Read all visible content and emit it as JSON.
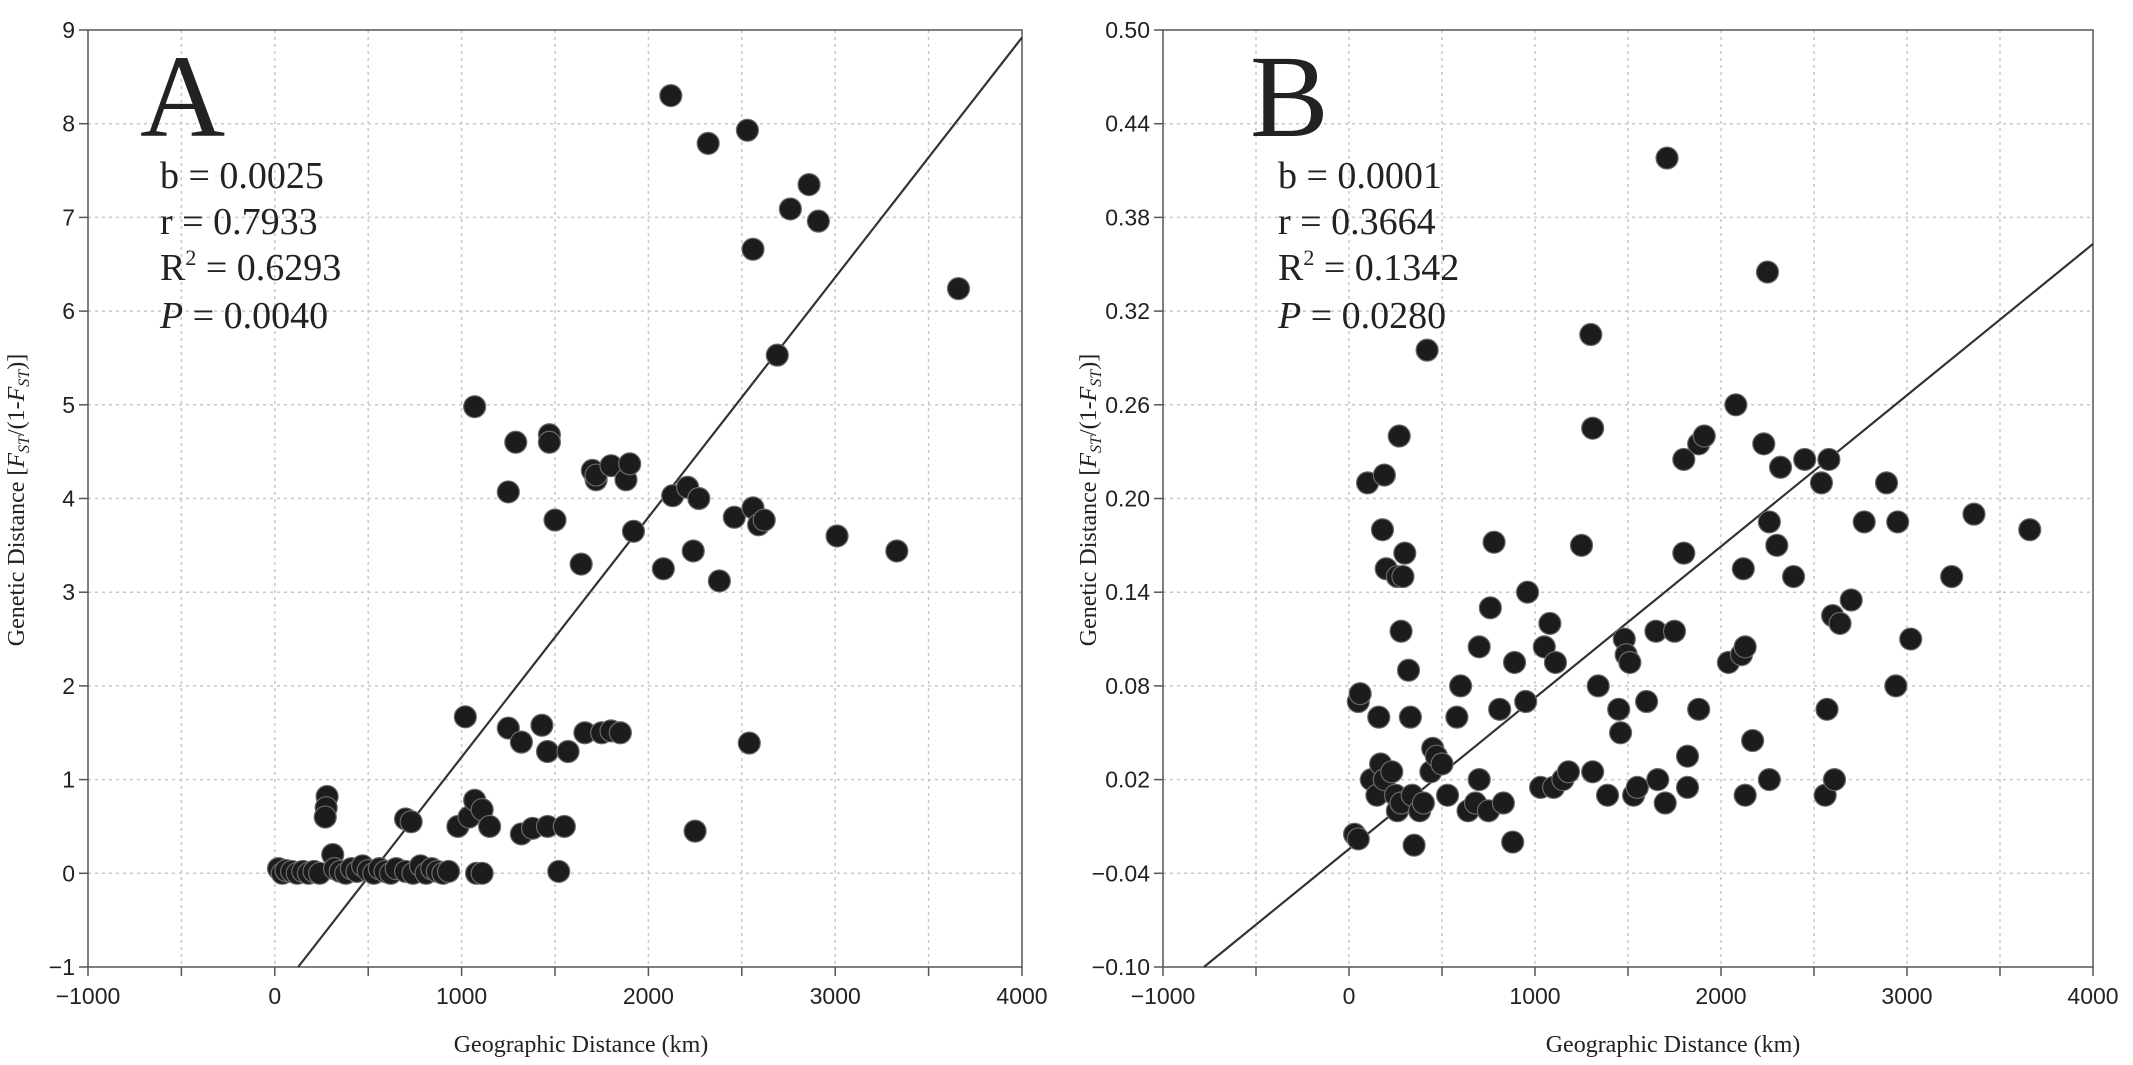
{
  "chart_data": [
    {
      "type": "scatter",
      "panel_label": "A",
      "xlabel": "Geographic Distance (km)",
      "ylabel_prefix": "Genetic Distance [",
      "ylabel_f1": "F",
      "ylabel_sub1": "ST",
      "ylabel_mid": "/(1-",
      "ylabel_f2": "F",
      "ylabel_sub2": "ST",
      "ylabel_suffix": ")]",
      "xlim": [
        -1000,
        4000
      ],
      "ylim": [
        -1,
        9
      ],
      "xticks": [
        -1000,
        0,
        1000,
        2000,
        3000,
        4000
      ],
      "xtick_labels": [
        "−1000",
        "0",
        "1000",
        "2000",
        "3000",
        "4000"
      ],
      "yticks": [
        -1,
        0,
        1,
        2,
        3,
        4,
        5,
        6,
        7,
        8,
        9
      ],
      "ytick_labels": [
        "−1",
        "0",
        "1",
        "2",
        "3",
        "4",
        "5",
        "6",
        "7",
        "8",
        "9"
      ],
      "grid": true,
      "stats": [
        {
          "label": "b",
          "value": " = 0.0025",
          "italic": false
        },
        {
          "label": "r",
          "value": " = 0.7933",
          "italic": false
        },
        {
          "label": "R",
          "sup": "2",
          "value": " = 0.6293",
          "italic": false
        },
        {
          "label": "P",
          "value": " = 0.0040",
          "italic": true
        }
      ],
      "regression_line": {
        "x": [
          125,
          4000
        ],
        "y": [
          -1.0,
          8.92
        ]
      },
      "points": [
        [
          20,
          0.05
        ],
        [
          40,
          0.0
        ],
        [
          60,
          0.03
        ],
        [
          90,
          0.02
        ],
        [
          120,
          0.0
        ],
        [
          150,
          0.02
        ],
        [
          180,
          0.0
        ],
        [
          210,
          0.02
        ],
        [
          240,
          0.0
        ],
        [
          280,
          0.82
        ],
        [
          275,
          0.7
        ],
        [
          270,
          0.6
        ],
        [
          310,
          0.2
        ],
        [
          320,
          0.05
        ],
        [
          350,
          0.02
        ],
        [
          380,
          0.0
        ],
        [
          410,
          0.05
        ],
        [
          440,
          0.02
        ],
        [
          470,
          0.08
        ],
        [
          500,
          0.03
        ],
        [
          530,
          0.0
        ],
        [
          560,
          0.05
        ],
        [
          590,
          0.02
        ],
        [
          620,
          0.0
        ],
        [
          650,
          0.05
        ],
        [
          700,
          0.58
        ],
        [
          730,
          0.55
        ],
        [
          700,
          0.02
        ],
        [
          740,
          0.0
        ],
        [
          780,
          0.08
        ],
        [
          810,
          0.0
        ],
        [
          840,
          0.05
        ],
        [
          870,
          0.02
        ],
        [
          900,
          0.0
        ],
        [
          930,
          0.02
        ],
        [
          980,
          0.5
        ],
        [
          1020,
          1.67
        ],
        [
          1040,
          0.6
        ],
        [
          1070,
          0.78
        ],
        [
          1080,
          0.0
        ],
        [
          1110,
          0.68
        ],
        [
          1110,
          0.0
        ],
        [
          1150,
          0.5
        ],
        [
          1070,
          4.98
        ],
        [
          1250,
          4.07
        ],
        [
          1290,
          4.6
        ],
        [
          1250,
          1.55
        ],
        [
          1320,
          1.4
        ],
        [
          1320,
          0.42
        ],
        [
          1380,
          0.48
        ],
        [
          1430,
          1.58
        ],
        [
          1460,
          0.5
        ],
        [
          1470,
          4.68
        ],
        [
          1470,
          4.6
        ],
        [
          1460,
          1.3
        ],
        [
          1500,
          3.77
        ],
        [
          1520,
          0.02
        ],
        [
          1550,
          0.5
        ],
        [
          1570,
          1.3
        ],
        [
          1640,
          3.3
        ],
        [
          1660,
          1.5
        ],
        [
          1700,
          4.3
        ],
        [
          1720,
          4.2
        ],
        [
          1720,
          4.25
        ],
        [
          1750,
          1.5
        ],
        [
          1800,
          1.52
        ],
        [
          1800,
          4.35
        ],
        [
          1850,
          1.5
        ],
        [
          1880,
          4.2
        ],
        [
          1900,
          4.37
        ],
        [
          1920,
          3.65
        ],
        [
          2080,
          3.25
        ],
        [
          2120,
          8.3
        ],
        [
          2130,
          4.03
        ],
        [
          2210,
          4.12
        ],
        [
          2240,
          3.44
        ],
        [
          2250,
          0.45
        ],
        [
          2270,
          4.0
        ],
        [
          2320,
          7.79
        ],
        [
          2380,
          3.12
        ],
        [
          2460,
          3.8
        ],
        [
          2530,
          7.93
        ],
        [
          2540,
          1.39
        ],
        [
          2560,
          3.9
        ],
        [
          2560,
          6.66
        ],
        [
          2590,
          3.72
        ],
        [
          2620,
          3.77
        ],
        [
          2690,
          5.53
        ],
        [
          2760,
          7.09
        ],
        [
          2860,
          7.35
        ],
        [
          2910,
          6.96
        ],
        [
          3010,
          3.6
        ],
        [
          3330,
          3.44
        ],
        [
          3660,
          6.24
        ]
      ]
    },
    {
      "type": "scatter",
      "panel_label": "B",
      "xlabel": "Geographic Distance (km)",
      "ylabel_prefix": "Genetic Distance [",
      "ylabel_f1": "F",
      "ylabel_sub1": "ST",
      "ylabel_mid": "/(1-",
      "ylabel_f2": "F",
      "ylabel_sub2": "ST",
      "ylabel_suffix": ")]",
      "xlim": [
        -1000,
        4000
      ],
      "ylim": [
        -0.1,
        0.5
      ],
      "xticks": [
        -1000,
        0,
        1000,
        2000,
        3000,
        4000
      ],
      "xtick_labels": [
        "−1000",
        "0",
        "1000",
        "2000",
        "3000",
        "4000"
      ],
      "yticks": [
        -0.1,
        -0.04,
        0.02,
        0.08,
        0.14,
        0.2,
        0.26,
        0.32,
        0.38,
        0.44,
        0.5
      ],
      "ytick_labels": [
        "−0.10",
        "−0.04",
        "0.02",
        "0.08",
        "0.14",
        "0.20",
        "0.26",
        "0.32",
        "0.38",
        "0.44",
        "0.50"
      ],
      "grid": true,
      "stats": [
        {
          "label": "b",
          "value": " = 0.0001",
          "italic": false
        },
        {
          "label": "r",
          "value": " = 0.3664",
          "italic": false
        },
        {
          "label": "R",
          "sup": "2",
          "value": " = 0.1342",
          "italic": false
        },
        {
          "label": "P",
          "value": " = 0.0280",
          "italic": true
        }
      ],
      "regression_line": {
        "x": [
          -780,
          4000
        ],
        "y": [
          -0.1,
          0.363
        ]
      },
      "points": [
        [
          30,
          -0.015
        ],
        [
          50,
          -0.018
        ],
        [
          50,
          0.07
        ],
        [
          60,
          0.075
        ],
        [
          100,
          0.21
        ],
        [
          120,
          0.02
        ],
        [
          150,
          0.01
        ],
        [
          160,
          0.06
        ],
        [
          170,
          0.03
        ],
        [
          180,
          0.18
        ],
        [
          190,
          0.02
        ],
        [
          190,
          0.215
        ],
        [
          200,
          0.155
        ],
        [
          230,
          0.025
        ],
        [
          250,
          0.01
        ],
        [
          260,
          0.0
        ],
        [
          260,
          0.15
        ],
        [
          270,
          0.24
        ],
        [
          280,
          0.005
        ],
        [
          280,
          0.115
        ],
        [
          290,
          0.15
        ],
        [
          300,
          0.165
        ],
        [
          320,
          0.09
        ],
        [
          330,
          0.06
        ],
        [
          340,
          0.01
        ],
        [
          350,
          -0.022
        ],
        [
          380,
          0.0
        ],
        [
          400,
          0.005
        ],
        [
          420,
          0.295
        ],
        [
          440,
          0.025
        ],
        [
          450,
          0.04
        ],
        [
          470,
          0.035
        ],
        [
          500,
          0.03
        ],
        [
          530,
          0.01
        ],
        [
          580,
          0.06
        ],
        [
          600,
          0.08
        ],
        [
          640,
          0.0
        ],
        [
          680,
          0.005
        ],
        [
          700,
          0.02
        ],
        [
          700,
          0.105
        ],
        [
          750,
          0.0
        ],
        [
          760,
          0.13
        ],
        [
          780,
          0.172
        ],
        [
          810,
          0.065
        ],
        [
          830,
          0.005
        ],
        [
          880,
          -0.02
        ],
        [
          890,
          0.095
        ],
        [
          950,
          0.07
        ],
        [
          960,
          0.14
        ],
        [
          1030,
          0.015
        ],
        [
          1050,
          0.105
        ],
        [
          1080,
          0.12
        ],
        [
          1100,
          0.015
        ],
        [
          1110,
          0.095
        ],
        [
          1150,
          0.02
        ],
        [
          1180,
          0.025
        ],
        [
          1250,
          0.17
        ],
        [
          1300,
          0.305
        ],
        [
          1310,
          0.245
        ],
        [
          1310,
          0.025
        ],
        [
          1340,
          0.08
        ],
        [
          1390,
          0.01
        ],
        [
          1450,
          0.065
        ],
        [
          1460,
          0.05
        ],
        [
          1480,
          0.11
        ],
        [
          1490,
          0.1
        ],
        [
          1510,
          0.095
        ],
        [
          1530,
          0.01
        ],
        [
          1550,
          0.015
        ],
        [
          1600,
          0.07
        ],
        [
          1650,
          0.115
        ],
        [
          1660,
          0.02
        ],
        [
          1700,
          0.005
        ],
        [
          1710,
          0.418
        ],
        [
          1750,
          0.115
        ],
        [
          1800,
          0.165
        ],
        [
          1800,
          0.225
        ],
        [
          1820,
          0.015
        ],
        [
          1820,
          0.035
        ],
        [
          1880,
          0.235
        ],
        [
          1880,
          0.065
        ],
        [
          1910,
          0.24
        ],
        [
          2040,
          0.095
        ],
        [
          2080,
          0.26
        ],
        [
          2110,
          0.1
        ],
        [
          2120,
          0.155
        ],
        [
          2130,
          0.01
        ],
        [
          2130,
          0.105
        ],
        [
          2170,
          0.045
        ],
        [
          2230,
          0.235
        ],
        [
          2250,
          0.345
        ],
        [
          2260,
          0.185
        ],
        [
          2260,
          0.02
        ],
        [
          2300,
          0.17
        ],
        [
          2320,
          0.22
        ],
        [
          2390,
          0.15
        ],
        [
          2450,
          0.225
        ],
        [
          2540,
          0.21
        ],
        [
          2560,
          0.01
        ],
        [
          2570,
          0.065
        ],
        [
          2580,
          0.225
        ],
        [
          2600,
          0.125
        ],
        [
          2610,
          0.02
        ],
        [
          2640,
          0.12
        ],
        [
          2700,
          0.135
        ],
        [
          2770,
          0.185
        ],
        [
          2890,
          0.21
        ],
        [
          2940,
          0.08
        ],
        [
          2950,
          0.185
        ],
        [
          3020,
          0.11
        ],
        [
          3240,
          0.15
        ],
        [
          3360,
          0.19
        ],
        [
          3660,
          0.18
        ]
      ]
    }
  ]
}
